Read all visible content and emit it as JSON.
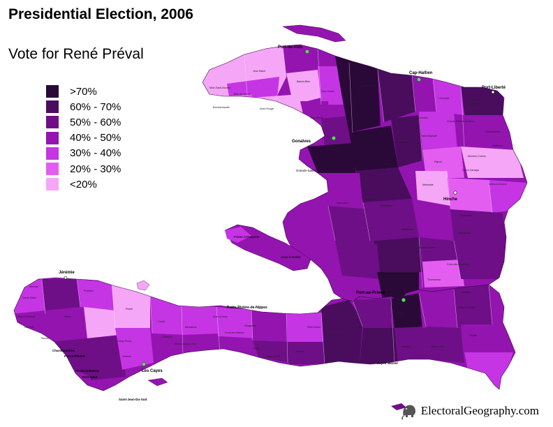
{
  "title": "Presidential Election, 2006",
  "subtitle": "Vote for René Préval",
  "legend": [
    {
      "label": ">70%",
      "color": "#2a0838"
    },
    {
      "label": "60% - 70%",
      "color": "#4a0d5e"
    },
    {
      "label": "50% - 60%",
      "color": "#6e0f87"
    },
    {
      "label": "40% - 50%",
      "color": "#9414b0"
    },
    {
      "label": "30% - 40%",
      "color": "#c535e4"
    },
    {
      "label": "20% - 30%",
      "color": "#e35ef0"
    },
    {
      "label": "<20%",
      "color": "#f6a6f6"
    }
  ],
  "cities": {
    "port_de_paix": "Port-de-Paix",
    "cap_haitien": "Cap-Haïtien",
    "port_liberte": "Port-Liberté",
    "gonaives": "Gonaïves",
    "hinche": "Hinche",
    "jeremie": "Jérémie",
    "port_au_prince": "Port-au-Prince",
    "les_cayes": "Les Cayes",
    "jacmel": "Jacmel",
    "petite_riviere": "Petite-Rivière-de-Nippes",
    "chardonnieres": "Chardonnières",
    "port_a_piment": "Port-à-Piment",
    "roche_a_bateau": "Roche-à-Bateau",
    "port_salut": "Port-Salut",
    "saint_jean_du_sud": "Saint-Jean-Du-Sud",
    "cayes_jacmel": "Cayes Jacmel",
    "grande_saline": "Grande-Saline",
    "anse_a_galets": "Anse-à-Galets",
    "pointe_a_raquette": "Pointe-à-Raquette"
  },
  "commune_labels": [
    "Jean Rabel",
    "Môle-Saint-Nicolas",
    "Bassin-Bleu",
    "Baie-de-Henne",
    "Bombardopolis",
    "Anse-Rouge",
    "Gros Morne",
    "Terre-Neuve",
    "Ennery",
    "Marmelade",
    "Saint-Raphaël",
    "Pignon",
    "Maïssade",
    "Mirebalais",
    "Saint-Marc",
    "Verrettes",
    "Lascahobas",
    "Thomazeau",
    "Croix-des-Bouquets",
    "Kenscoff",
    "Léogâne",
    "Grand-Goâve",
    "Aquin",
    "Miragoâne",
    "Anse-à-Veau",
    "Baradères",
    "Corail",
    "Pestel",
    "Dame-Marie",
    "Anse-d'Hainault",
    "Les Irois",
    "Tiburon",
    "Camp-Perrin",
    "Torbeck",
    "Cavaillon",
    "Côtes-de-Fer",
    "Bainet",
    "Marigot",
    "Belle-Anse",
    "Thiotte",
    "Mombin-Crochu",
    "Cerca Carvajal",
    "Cerca-la-Source",
    "Ouanaminthe",
    "Trou-du-Nord",
    "Limonade",
    "Plaisance",
    "Dondon",
    "Grande-Rivière-du-Nord",
    "Vallières",
    "Thomonde",
    "Boucan-Carré",
    "Mirebalais",
    "Fonds-Verrettes",
    "Ganthier",
    "Petit-Goâve",
    "Fond-des-Blancs",
    "Saint-Louis-du-Sud",
    "Moron",
    "Abricots",
    "Roseaux"
  ],
  "credit": "ElectoralGeography.com"
}
